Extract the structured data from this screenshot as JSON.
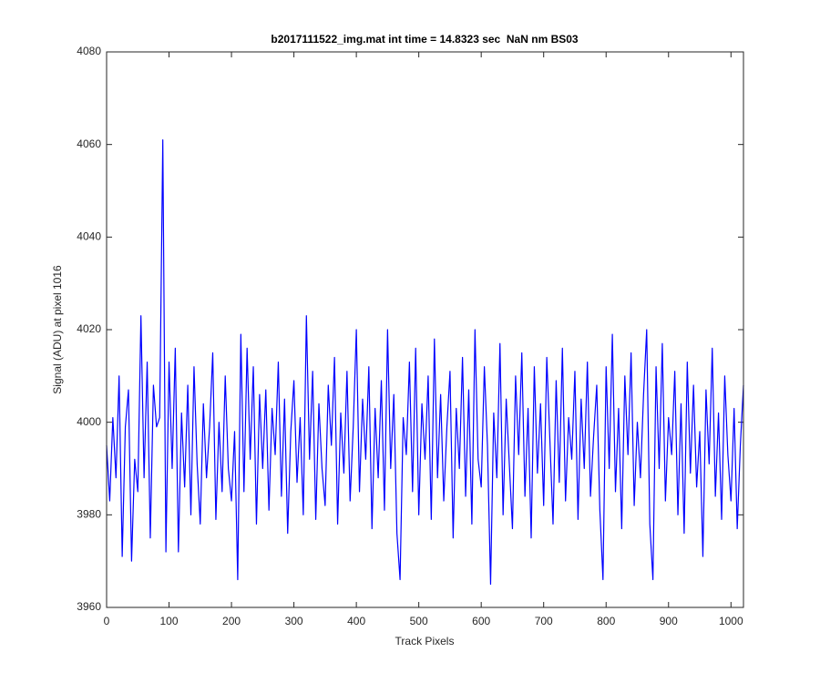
{
  "chart_data": {
    "type": "line",
    "title": "b2017111522_img.mat int time = 14.8323 sec  NaN nm BS03",
    "x_label": "Track Pixels",
    "y_label": "Signal (ADU) at pixel 1016",
    "xlim": [
      0,
      1020
    ],
    "ylim": [
      3960,
      4080
    ],
    "xticks": [
      0,
      100,
      200,
      300,
      400,
      500,
      600,
      700,
      800,
      900,
      1000
    ],
    "yticks": [
      3960,
      3980,
      4000,
      4020,
      4040,
      4060,
      4080
    ],
    "grid": false,
    "x": [
      0,
      5,
      10,
      15,
      20,
      25,
      30,
      35,
      40,
      45,
      50,
      55,
      60,
      65,
      70,
      75,
      80,
      85,
      90,
      95,
      100,
      105,
      110,
      115,
      120,
      125,
      130,
      135,
      140,
      145,
      150,
      155,
      160,
      165,
      170,
      175,
      180,
      185,
      190,
      195,
      200,
      205,
      210,
      215,
      220,
      225,
      230,
      235,
      240,
      245,
      250,
      255,
      260,
      265,
      270,
      275,
      280,
      285,
      290,
      295,
      300,
      305,
      310,
      315,
      320,
      325,
      330,
      335,
      340,
      345,
      350,
      355,
      360,
      365,
      370,
      375,
      380,
      385,
      390,
      395,
      400,
      405,
      410,
      415,
      420,
      425,
      430,
      435,
      440,
      445,
      450,
      455,
      460,
      465,
      470,
      475,
      480,
      485,
      490,
      495,
      500,
      505,
      510,
      515,
      520,
      525,
      530,
      535,
      540,
      545,
      550,
      555,
      560,
      565,
      570,
      575,
      580,
      585,
      590,
      595,
      600,
      605,
      610,
      615,
      620,
      625,
      630,
      635,
      640,
      645,
      650,
      655,
      660,
      665,
      670,
      675,
      680,
      685,
      690,
      695,
      700,
      705,
      710,
      715,
      720,
      725,
      730,
      735,
      740,
      745,
      750,
      755,
      760,
      765,
      770,
      775,
      780,
      785,
      790,
      795,
      800,
      805,
      810,
      815,
      820,
      825,
      830,
      835,
      840,
      845,
      850,
      855,
      860,
      865,
      870,
      875,
      880,
      885,
      890,
      895,
      900,
      905,
      910,
      915,
      920,
      925,
      930,
      935,
      940,
      945,
      950,
      955,
      960,
      965,
      970,
      975,
      980,
      985,
      990,
      995,
      1000,
      1005,
      1010,
      1015,
      1020
    ],
    "series": [
      {
        "name": "signal",
        "color": "#0000ff",
        "values": [
          3995,
          3983,
          4001,
          3988,
          4010,
          3971,
          3999,
          4007,
          3970,
          3992,
          3985,
          4023,
          3988,
          4013,
          3975,
          4008,
          3999,
          4001,
          4061,
          3972,
          4013,
          3990,
          4016,
          3972,
          4002,
          3986,
          4008,
          3980,
          4012,
          3991,
          3978,
          4004,
          3988,
          3999,
          4015,
          3979,
          4000,
          3985,
          4010,
          3990,
          3983,
          3998,
          3966,
          4019,
          3985,
          4016,
          3992,
          4012,
          3978,
          4006,
          3990,
          4007,
          3981,
          4003,
          3993,
          4013,
          3984,
          4005,
          3976,
          3998,
          4009,
          3987,
          4001,
          3980,
          4023,
          3992,
          4011,
          3979,
          4004,
          3990,
          3982,
          4008,
          3995,
          4014,
          3978,
          4002,
          3989,
          4011,
          3983,
          3999,
          4020,
          3985,
          4005,
          3992,
          4012,
          3977,
          4003,
          3988,
          4009,
          3981,
          4020,
          3990,
          4006,
          3976,
          3966,
          4001,
          3993,
          4013,
          3985,
          4016,
          3980,
          4004,
          3992,
          4010,
          3979,
          4018,
          3988,
          4006,
          3983,
          3999,
          4011,
          3975,
          4003,
          3990,
          4014,
          3984,
          4007,
          3978,
          4020,
          3992,
          3986,
          4012,
          3995,
          3965,
          4002,
          3988,
          4017,
          3980,
          4005,
          3991,
          3977,
          4010,
          3993,
          4015,
          3984,
          4003,
          3975,
          4012,
          3989,
          4004,
          3982,
          4014,
          3996,
          3978,
          4009,
          3987,
          4016,
          3983,
          4001,
          3992,
          4011,
          3979,
          4005,
          3990,
          4013,
          3984,
          3997,
          4008,
          3981,
          3966,
          4012,
          3990,
          4019,
          3985,
          4003,
          3977,
          4010,
          3993,
          4015,
          3982,
          4000,
          3988,
          4006,
          4020,
          3978,
          3966,
          4012,
          3990,
          4017,
          3983,
          4001,
          3993,
          4011,
          3980,
          4004,
          3976,
          4013,
          3989,
          4008,
          3986,
          3998,
          3971,
          4007,
          3991,
          4016,
          3984,
          4002,
          3979,
          4010,
          3993,
          3983,
          4003,
          3977,
          3995,
          4008
        ]
      }
    ]
  }
}
